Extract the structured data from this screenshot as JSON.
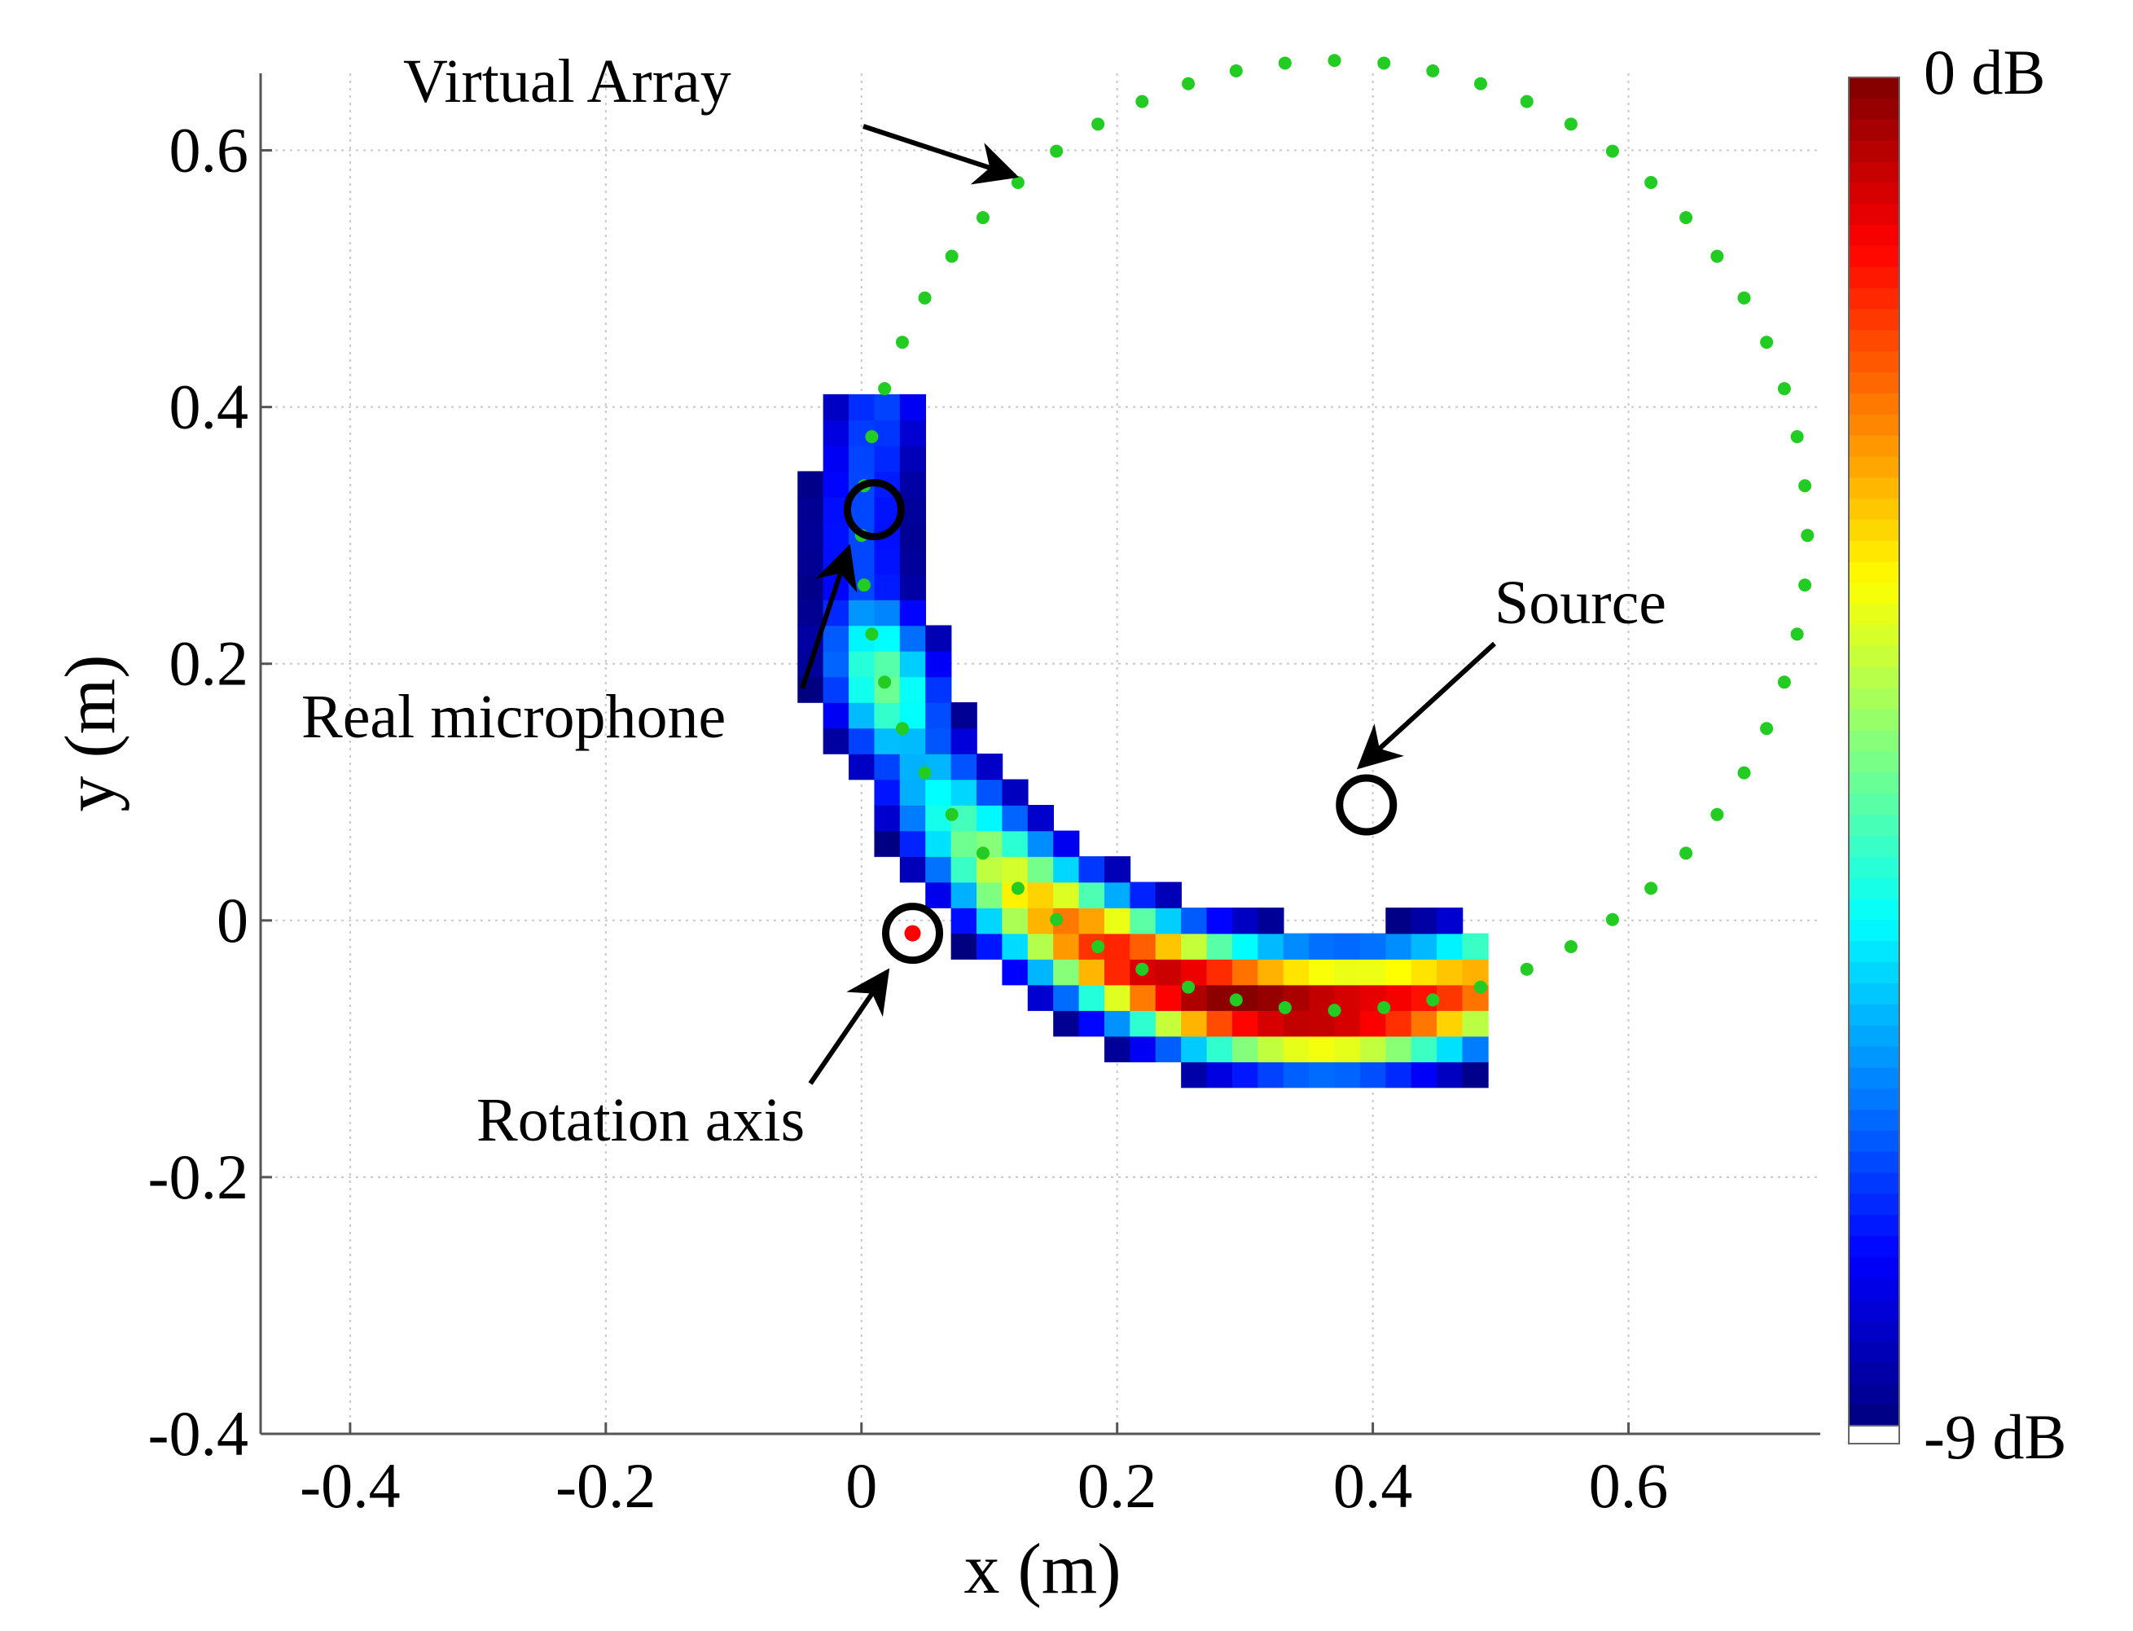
{
  "chart_data": {
    "type": "heatmap",
    "title": "",
    "xlabel": "x (m)",
    "ylabel": "y (m)",
    "xlim": [
      -0.47,
      0.75
    ],
    "ylim": [
      -0.4,
      0.66
    ],
    "xticks": [
      -0.4,
      -0.2,
      0,
      0.2,
      0.4,
      0.6
    ],
    "xtick_labels": [
      "-0.4",
      "-0.2",
      "0",
      "0.2",
      "0.4",
      "0.6"
    ],
    "yticks": [
      -0.4,
      -0.2,
      0,
      0.2,
      0.4,
      0.6
    ],
    "ytick_labels": [
      "-0.4",
      "-0.2",
      "0",
      "0.2",
      "0.4",
      "0.6"
    ],
    "grid": true,
    "colorbar": {
      "colormap": "jet",
      "range_db": [
        -9,
        0
      ],
      "top_label": "0 dB",
      "bottom_label": "-9 dB"
    },
    "heatmap": {
      "description": "Beamforming map (dB) along an arc of the circular virtual array, peak near the source",
      "threshold_db": -9,
      "peak_db": 0
    },
    "virtual_array": {
      "label": "Virtual Array",
      "center": [
        0.37,
        0.3
      ],
      "radius": 0.37,
      "points": 60,
      "color": "#22cc22"
    },
    "markers": [
      {
        "name": "Real microphone",
        "x": 0.01,
        "y": 0.32
      },
      {
        "name": "Source",
        "x": 0.395,
        "y": 0.09
      },
      {
        "name": "Rotation axis",
        "x": 0.04,
        "y": -0.01,
        "center_color": "#ff0000"
      }
    ],
    "annotations": [
      {
        "text": "Virtual Array",
        "points_to": [
          0.12,
          0.58
        ]
      },
      {
        "text": "Real microphone",
        "points_to": [
          -0.01,
          0.29
        ]
      },
      {
        "text": "Source",
        "points_to": [
          0.39,
          0.12
        ]
      },
      {
        "text": "Rotation axis",
        "points_to": [
          0.02,
          -0.04
        ]
      }
    ]
  }
}
